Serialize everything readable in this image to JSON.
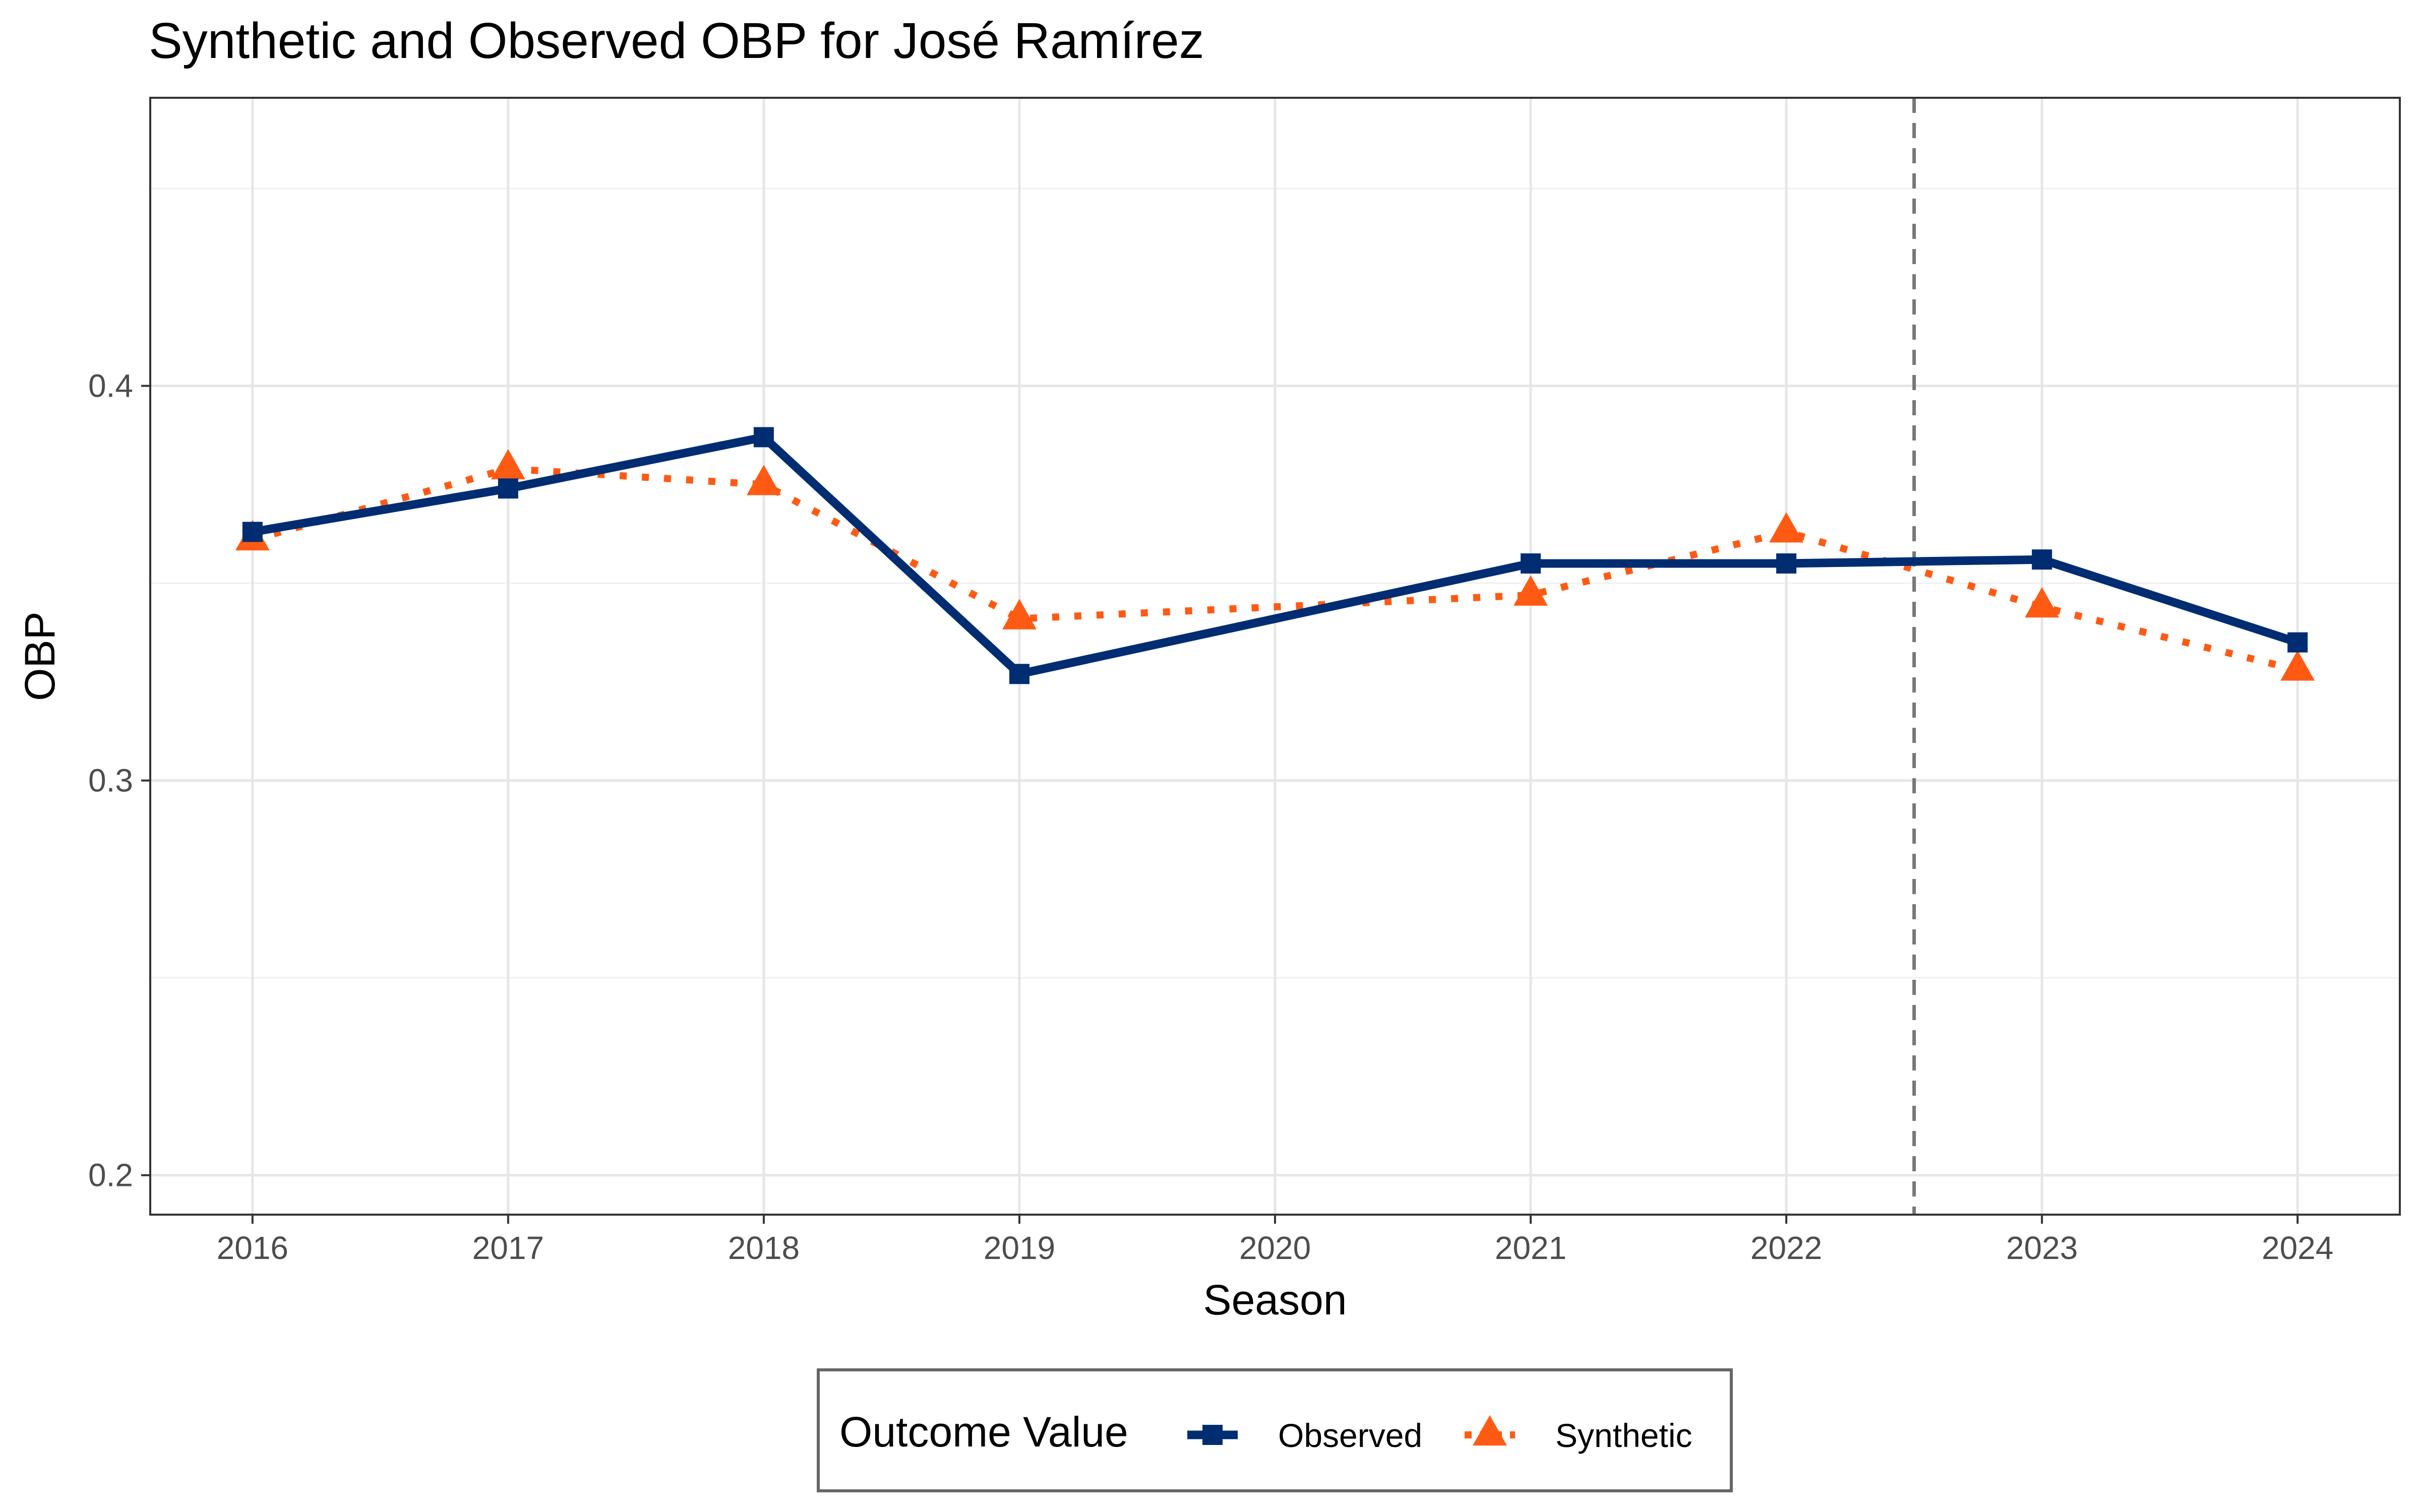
{
  "chart_data": {
    "type": "line",
    "title": "Synthetic and Observed OBP for José Ramírez",
    "xlabel": "Season",
    "ylabel": "OBP",
    "x": [
      2016,
      2017,
      2018,
      2019,
      2020,
      2021,
      2022,
      2023,
      2024
    ],
    "x_tick_labels": [
      "2016",
      "2017",
      "2018",
      "2019",
      "2020",
      "2021",
      "2022",
      "2023",
      "2024"
    ],
    "y_ticks": [
      0.2,
      0.3,
      0.4
    ],
    "y_tick_labels": [
      "0.2",
      "0.3",
      "0.4"
    ],
    "ylim": [
      0.19,
      0.473
    ],
    "xlim": [
      2015.6,
      2024.4
    ],
    "grid": true,
    "reference_line": {
      "x": 2022.5,
      "style": "dashed",
      "color": "#777777"
    },
    "series": [
      {
        "name": "Observed",
        "color": "#002D72",
        "marker": "square",
        "line_style": "solid",
        "values": [
          0.363,
          0.374,
          0.387,
          0.327,
          null,
          0.355,
          0.355,
          0.356,
          0.335
        ]
      },
      {
        "name": "Synthetic",
        "color": "#FF5A14",
        "marker": "triangle",
        "line_style": "dotted",
        "values": [
          0.361,
          0.379,
          0.375,
          0.341,
          null,
          0.347,
          0.363,
          0.344,
          0.328
        ]
      }
    ],
    "legend": {
      "title": "Outcome Value",
      "position": "bottom"
    }
  }
}
